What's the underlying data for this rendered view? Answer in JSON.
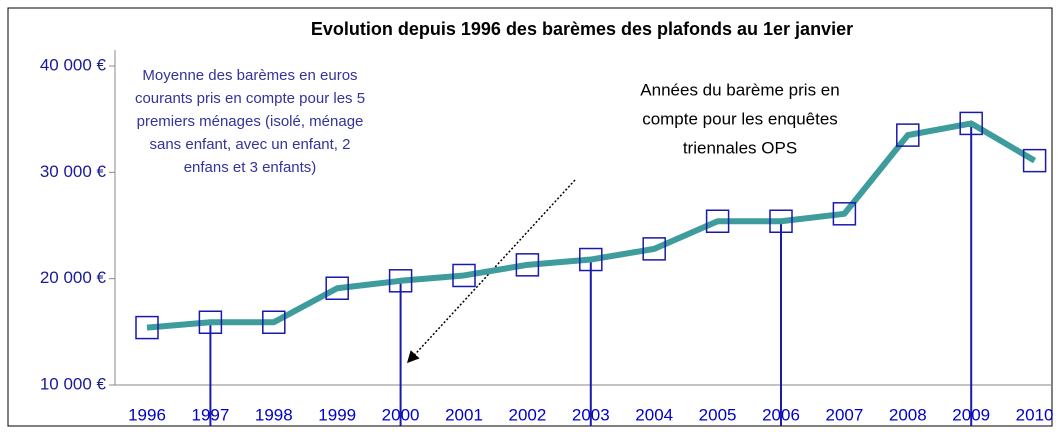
{
  "chart_data": {
    "type": "line",
    "title": "Evolution depuis 1996 des barèmes des plafonds au 1er janvier",
    "categories": [
      "1996",
      "1997",
      "1998",
      "1999",
      "2000",
      "2001",
      "2002",
      "2003",
      "2004",
      "2005",
      "2006",
      "2007",
      "2008",
      "2009",
      "2010"
    ],
    "series": [
      {
        "name": "Moyenne des barèmes",
        "color": "#3e9c9c",
        "values": [
          15400,
          15900,
          15900,
          19100,
          19800,
          20300,
          21300,
          21800,
          22800,
          25400,
          25400,
          26100,
          33500,
          34600,
          31100
        ]
      }
    ],
    "ops_years": [
      "1997",
      "2000",
      "2003",
      "2006",
      "2009"
    ],
    "ylim": [
      10000,
      40000
    ],
    "yticks": [
      {
        "value": 10000,
        "label": "10 000 €"
      },
      {
        "value": 20000,
        "label": "20 000 €"
      },
      {
        "value": 30000,
        "label": "30 000 €"
      },
      {
        "value": 40000,
        "label": "40 000 €"
      }
    ],
    "annotations": [
      [
        "Moyenne des barèmes en euros",
        "courants  pris en compte pour les 5",
        "premiers ménages  (isolé, ménage",
        "sans enfant, avec un enfant, 2",
        "enfans et 3 enfants)"
      ],
      [
        "Années du barème  pris en",
        "compte pour les enquêtes",
        "triennales OPS"
      ]
    ]
  }
}
